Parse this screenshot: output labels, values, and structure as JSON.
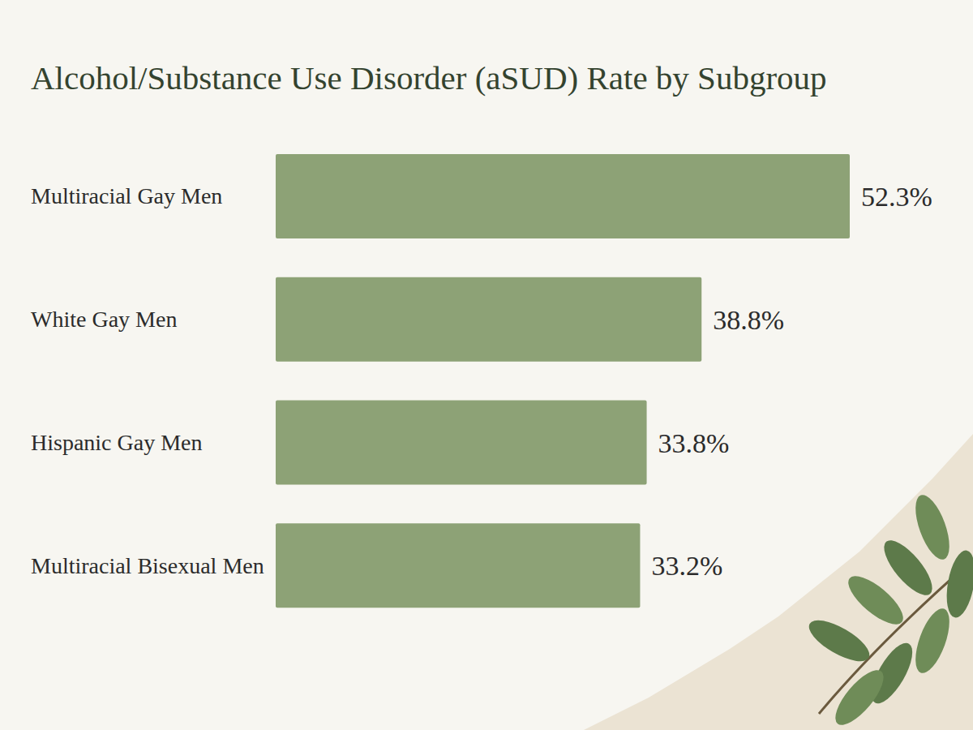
{
  "chart_data": {
    "type": "bar",
    "title": "Alcohol/Substance Use Disorder (aSUD) Rate by Subgroup",
    "categories": [
      "Multiracial Gay Men",
      "White Gay Men",
      "Hispanic Gay Men",
      "Multiracial Bisexual Men"
    ],
    "values": [
      52.3,
      38.8,
      33.8,
      33.2
    ],
    "value_labels": [
      "52.3%",
      "38.8%",
      "33.8%",
      "33.2%"
    ],
    "color": "#8da276",
    "orientation": "horizontal",
    "data_labels": true,
    "tick_labels": "y"
  }
}
